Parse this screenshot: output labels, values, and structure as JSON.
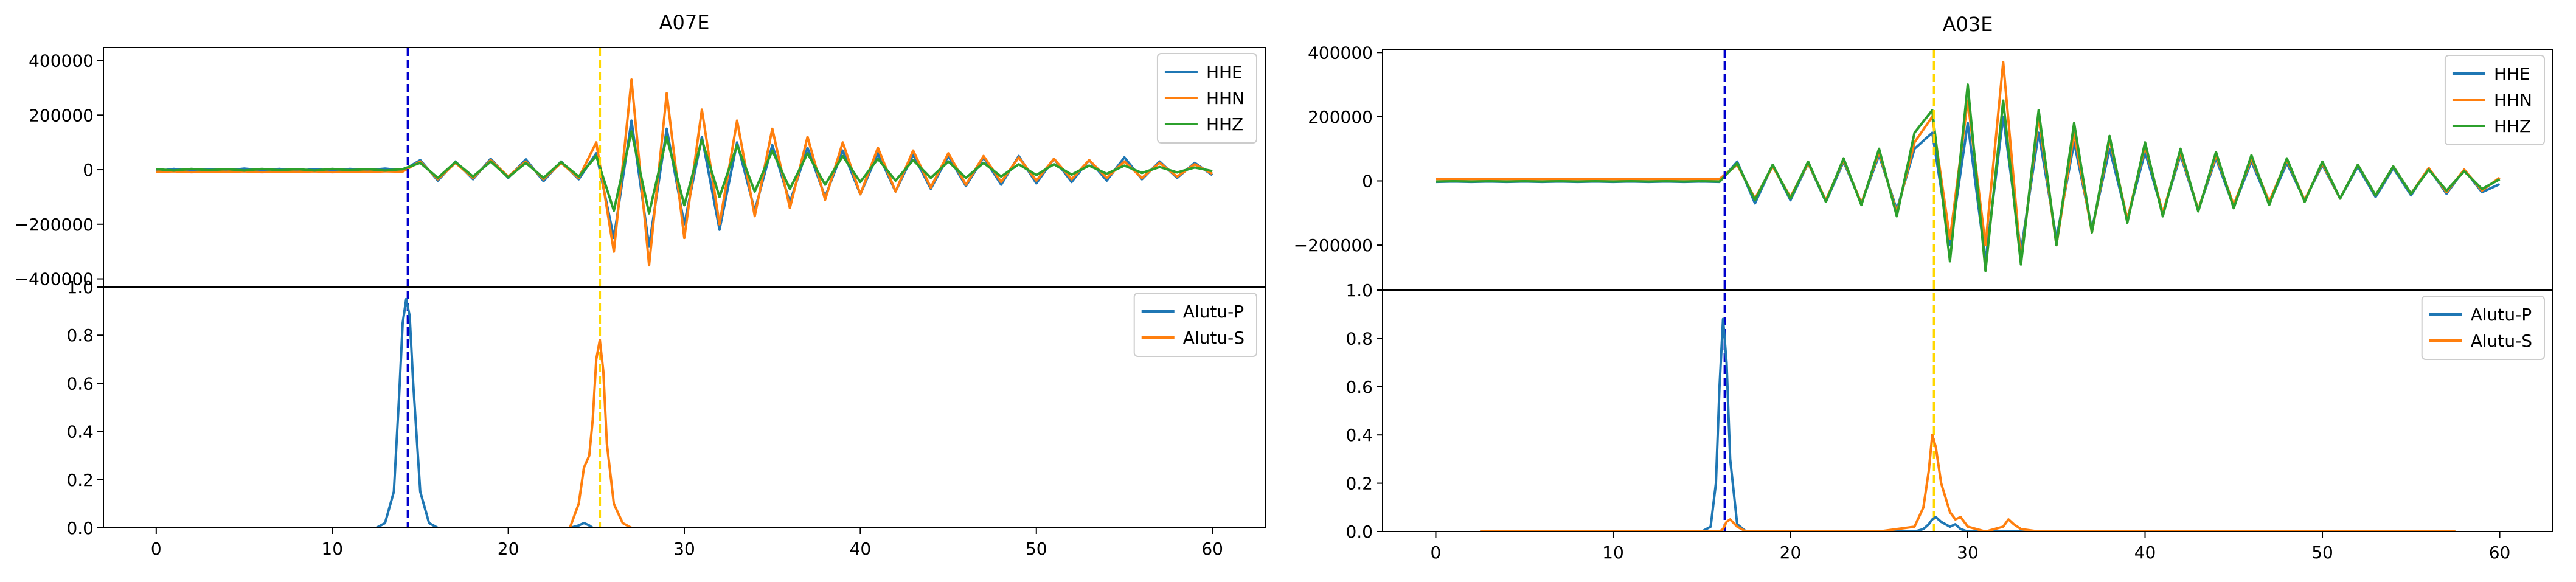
{
  "chart_data": [
    {
      "type": "line",
      "title": "A07E",
      "xlim": [
        -3,
        63
      ],
      "ylim": [
        -430000,
        448000
      ],
      "yticks": [
        {
          "value": -400000,
          "label": "−400000"
        },
        {
          "value": -200000,
          "label": "−200000"
        },
        0,
        200000,
        400000
      ],
      "legend": "upper right",
      "vlines": [
        {
          "x": 14.3,
          "color": "#0000cc",
          "linestyle": "dashed"
        },
        {
          "x": 25.2,
          "color": "#ffd700",
          "linestyle": "dashed"
        }
      ],
      "x": [
        0,
        1,
        2,
        3,
        4,
        5,
        6,
        7,
        8,
        9,
        10,
        11,
        12,
        13,
        14,
        15,
        16,
        17,
        18,
        19,
        20,
        21,
        22,
        23,
        24,
        25,
        26,
        27,
        28,
        29,
        30,
        31,
        32,
        33,
        34,
        35,
        36,
        37,
        38,
        39,
        40,
        41,
        42,
        43,
        44,
        45,
        46,
        47,
        48,
        49,
        50,
        51,
        52,
        53,
        54,
        55,
        56,
        57,
        58,
        59,
        60
      ],
      "series": [
        {
          "name": "HHE",
          "color": "#1f77b4",
          "values": [
            -5000,
            3000,
            -4000,
            2000,
            -3000,
            4000,
            -2000,
            3000,
            -4000,
            2000,
            -3000,
            3000,
            -2000,
            4000,
            -3000,
            35000,
            -40000,
            30000,
            -35000,
            40000,
            -30000,
            38000,
            -42000,
            30000,
            -35000,
            60000,
            -250000,
            180000,
            -280000,
            150000,
            -200000,
            120000,
            -220000,
            100000,
            -150000,
            90000,
            -120000,
            80000,
            -100000,
            70000,
            -90000,
            60000,
            -80000,
            55000,
            -70000,
            50000,
            -60000,
            45000,
            -55000,
            50000,
            -50000,
            40000,
            -45000,
            35000,
            -40000,
            45000,
            -35000,
            30000,
            -30000,
            25000,
            -20000
          ]
        },
        {
          "name": "HHN",
          "color": "#ff7f0e",
          "values": [
            -8000,
            -6000,
            -9000,
            -7000,
            -8000,
            -6000,
            -9000,
            -7000,
            -8000,
            -6000,
            -9000,
            -7000,
            -8000,
            -6000,
            -7000,
            30000,
            -35000,
            25000,
            -30000,
            35000,
            -25000,
            30000,
            -35000,
            25000,
            -30000,
            100000,
            -300000,
            330000,
            -350000,
            280000,
            -250000,
            220000,
            -200000,
            180000,
            -170000,
            150000,
            -140000,
            120000,
            -110000,
            100000,
            -90000,
            80000,
            -80000,
            70000,
            -65000,
            60000,
            -55000,
            50000,
            -45000,
            45000,
            -40000,
            40000,
            -35000,
            35000,
            -30000,
            30000,
            -30000,
            25000,
            -25000,
            20000,
            -15000
          ]
        },
        {
          "name": "HHZ",
          "color": "#2ca02c",
          "values": [
            2000,
            -3000,
            3000,
            -2000,
            2000,
            -3000,
            3000,
            -2000,
            2000,
            -3000,
            3000,
            -2000,
            2000,
            -3000,
            2000,
            25000,
            -30000,
            28000,
            -25000,
            30000,
            -28000,
            25000,
            -30000,
            28000,
            -25000,
            50000,
            -150000,
            140000,
            -160000,
            120000,
            -130000,
            110000,
            -100000,
            90000,
            -80000,
            70000,
            -70000,
            60000,
            -55000,
            50000,
            -45000,
            40000,
            -40000,
            35000,
            -30000,
            30000,
            -30000,
            25000,
            -25000,
            20000,
            -20000,
            20000,
            -18000,
            15000,
            -15000,
            15000,
            -12000,
            10000,
            -10000,
            8000,
            -5000
          ]
        }
      ]
    },
    {
      "type": "line",
      "xlim": [
        -3,
        63
      ],
      "ylim": [
        0,
        1
      ],
      "yticks": [
        {
          "value": 0,
          "label": "0.0"
        },
        0.2,
        0.4,
        0.6,
        0.8,
        {
          "value": 1,
          "label": "1.0"
        }
      ],
      "xticks": [
        0,
        10,
        20,
        30,
        40,
        50,
        60
      ],
      "legend": "upper right",
      "x": [
        2.5,
        10,
        12.5,
        13,
        13.5,
        13.8,
        14,
        14.2,
        14.4,
        14.6,
        15,
        15.5,
        16,
        20,
        23.5,
        24,
        24.3,
        24.6,
        24.8,
        25,
        25.2,
        25.4,
        25.6,
        26,
        26.5,
        27,
        30,
        40,
        50,
        57.5
      ],
      "series": [
        {
          "name": "Alutu-P",
          "color": "#1f77b4",
          "values": [
            0,
            0,
            0,
            0.02,
            0.15,
            0.55,
            0.85,
            0.95,
            0.88,
            0.6,
            0.15,
            0.02,
            0,
            0,
            0,
            0.01,
            0.02,
            0.01,
            0,
            0,
            0,
            0,
            0,
            0,
            0,
            0,
            0,
            0,
            0,
            0
          ]
        },
        {
          "name": "Alutu-S",
          "color": "#ff7f0e",
          "values": [
            0,
            0,
            0,
            0,
            0,
            0,
            0,
            0,
            0,
            0,
            0,
            0,
            0,
            0,
            0,
            0.1,
            0.25,
            0.3,
            0.45,
            0.7,
            0.78,
            0.65,
            0.35,
            0.1,
            0.02,
            0,
            0,
            0,
            0,
            0
          ]
        }
      ]
    },
    {
      "type": "line",
      "title": "A03E",
      "xlim": [
        -3,
        63
      ],
      "ylim": [
        -340000,
        410000
      ],
      "yticks": [
        {
          "value": -200000,
          "label": "−200000"
        },
        0,
        200000,
        400000
      ],
      "legend": "upper right",
      "vlines": [
        {
          "x": 16.3,
          "color": "#0000cc",
          "linestyle": "dashed"
        },
        {
          "x": 28.1,
          "color": "#ffd700",
          "linestyle": "dashed"
        }
      ],
      "x": [
        0,
        1,
        2,
        3,
        4,
        5,
        6,
        7,
        8,
        9,
        10,
        11,
        12,
        13,
        14,
        15,
        16,
        17,
        18,
        19,
        20,
        21,
        22,
        23,
        24,
        25,
        26,
        27,
        28,
        29,
        30,
        31,
        32,
        33,
        34,
        35,
        36,
        37,
        38,
        39,
        40,
        41,
        42,
        43,
        44,
        45,
        46,
        47,
        48,
        49,
        50,
        51,
        52,
        53,
        54,
        55,
        56,
        57,
        58,
        59,
        60
      ],
      "series": [
        {
          "name": "HHE",
          "color": "#1f77b4",
          "values": [
            -3000,
            -2000,
            -3000,
            -2000,
            -3000,
            -2000,
            -3000,
            -2000,
            -3000,
            -2000,
            -3000,
            -2000,
            -3000,
            -2000,
            -3000,
            -2000,
            -3000,
            60000,
            -70000,
            50000,
            -60000,
            55000,
            -65000,
            60000,
            -70000,
            80000,
            -90000,
            100000,
            150000,
            -200000,
            180000,
            -250000,
            200000,
            -220000,
            150000,
            -180000,
            120000,
            -150000,
            100000,
            -120000,
            90000,
            -100000,
            80000,
            -90000,
            70000,
            -80000,
            60000,
            -70000,
            55000,
            -60000,
            50000,
            -55000,
            45000,
            -50000,
            40000,
            -45000,
            40000,
            -40000,
            35000,
            -35000,
            -10000
          ]
        },
        {
          "name": "HHN",
          "color": "#ff7f0e",
          "values": [
            6000,
            5000,
            6000,
            5000,
            6000,
            5000,
            6000,
            5000,
            6000,
            5000,
            6000,
            5000,
            6000,
            5000,
            6000,
            5000,
            6000,
            50000,
            -55000,
            45000,
            -50000,
            55000,
            -60000,
            65000,
            -70000,
            90000,
            -100000,
            120000,
            200000,
            -180000,
            250000,
            -200000,
            370000,
            -250000,
            200000,
            -200000,
            150000,
            -160000,
            130000,
            -120000,
            110000,
            -100000,
            90000,
            -90000,
            80000,
            -75000,
            70000,
            -65000,
            65000,
            -60000,
            55000,
            -55000,
            50000,
            -45000,
            45000,
            -40000,
            40000,
            -35000,
            35000,
            -30000,
            10000
          ]
        },
        {
          "name": "HHZ",
          "color": "#2ca02c",
          "values": [
            -2000,
            -1000,
            -2000,
            -1000,
            -2000,
            -1000,
            -2000,
            -1000,
            -2000,
            -1000,
            -2000,
            -1000,
            -2000,
            -1000,
            -2000,
            -1000,
            -2000,
            55000,
            -60000,
            50000,
            -55000,
            60000,
            -65000,
            70000,
            -75000,
            100000,
            -110000,
            150000,
            220000,
            -250000,
            300000,
            -280000,
            250000,
            -260000,
            220000,
            -200000,
            180000,
            -160000,
            140000,
            -130000,
            120000,
            -110000,
            100000,
            -95000,
            90000,
            -85000,
            80000,
            -75000,
            70000,
            -65000,
            60000,
            -55000,
            50000,
            -45000,
            45000,
            -40000,
            35000,
            -30000,
            30000,
            -25000,
            5000
          ]
        }
      ]
    },
    {
      "type": "line",
      "xlim": [
        -3,
        63
      ],
      "ylim": [
        0,
        1
      ],
      "yticks": [
        {
          "value": 0,
          "label": "0.0"
        },
        0.2,
        0.4,
        0.6,
        0.8,
        {
          "value": 1,
          "label": "1.0"
        }
      ],
      "xticks": [
        0,
        10,
        20,
        30,
        40,
        50,
        60
      ],
      "legend": "upper right",
      "x": [
        2.5,
        10,
        15,
        15.5,
        15.8,
        16,
        16.2,
        16.4,
        16.6,
        17,
        17.5,
        18,
        25,
        27,
        27.5,
        27.8,
        28,
        28.2,
        28.5,
        29,
        29.3,
        29.6,
        30,
        31,
        32,
        32.3,
        32.6,
        33,
        34,
        40,
        50,
        57.5
      ],
      "series": [
        {
          "name": "Alutu-P",
          "color": "#1f77b4",
          "values": [
            0,
            0,
            0,
            0.02,
            0.2,
            0.6,
            0.88,
            0.7,
            0.3,
            0.03,
            0,
            0,
            0,
            0,
            0.01,
            0.03,
            0.05,
            0.06,
            0.04,
            0.02,
            0.03,
            0.01,
            0,
            0,
            0,
            0,
            0,
            0,
            0,
            0,
            0,
            0
          ]
        },
        {
          "name": "Alutu-S",
          "color": "#ff7f0e",
          "values": [
            0,
            0,
            0,
            0,
            0,
            0,
            0.01,
            0.04,
            0.05,
            0.02,
            0,
            0,
            0,
            0.02,
            0.1,
            0.25,
            0.4,
            0.35,
            0.2,
            0.08,
            0.05,
            0.06,
            0.02,
            0,
            0.02,
            0.05,
            0.03,
            0.01,
            0,
            0,
            0,
            0
          ]
        }
      ]
    }
  ]
}
